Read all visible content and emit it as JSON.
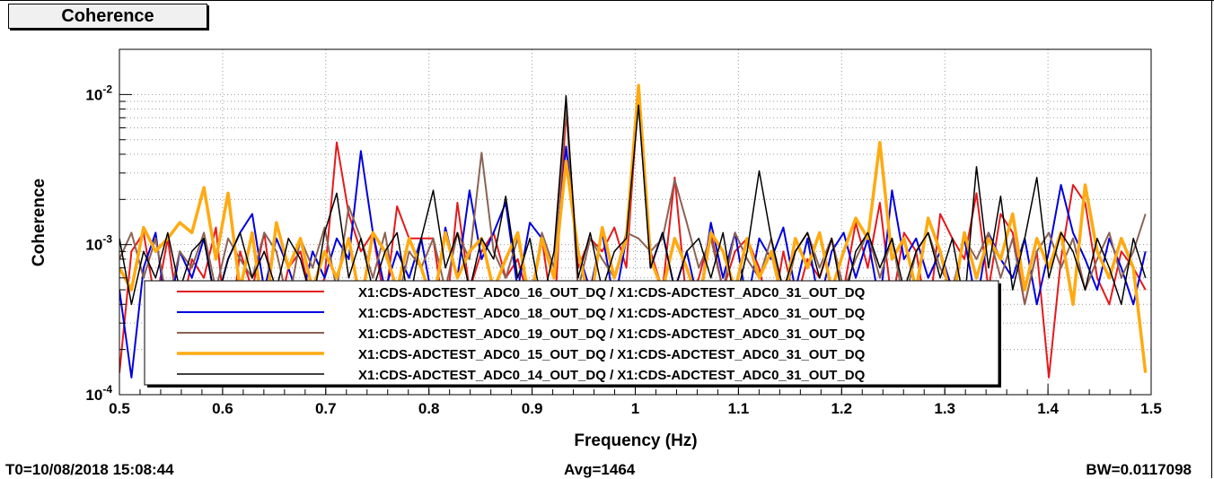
{
  "chart_data": {
    "type": "line",
    "title": "Coherence",
    "xlabel": "Frequency (Hz)",
    "ylabel": "Coherence",
    "xlim": [
      0.5,
      1.5
    ],
    "ylim": [
      0.0001,
      0.02
    ],
    "yscale": "log",
    "grid": true,
    "legend_placement": "bottom-center",
    "x_ticks": [
      {
        "value": 0.5,
        "label": "0.5"
      },
      {
        "value": 0.6,
        "label": "0.6"
      },
      {
        "value": 0.7,
        "label": "0.7"
      },
      {
        "value": 0.8,
        "label": "0.8"
      },
      {
        "value": 0.9,
        "label": "0.9"
      },
      {
        "value": 1.0,
        "label": "1"
      },
      {
        "value": 1.1,
        "label": "1.1"
      },
      {
        "value": 1.2,
        "label": "1.2"
      },
      {
        "value": 1.3,
        "label": "1.3"
      },
      {
        "value": 1.4,
        "label": "1.4"
      },
      {
        "value": 1.5,
        "label": "1.5"
      }
    ],
    "y_ticks": [
      {
        "value": 0.0001,
        "base": "10",
        "exp": "-4"
      },
      {
        "value": 0.001,
        "base": "10",
        "exp": "-3"
      },
      {
        "value": 0.01,
        "base": "10",
        "exp": "-2"
      }
    ],
    "x": [
      0.5,
      0.5117,
      0.5234,
      0.5351,
      0.5468,
      0.5585,
      0.5702,
      0.5819,
      0.5936,
      0.6053,
      0.617,
      0.6287,
      0.6404,
      0.6521,
      0.6638,
      0.6755,
      0.6872,
      0.6989,
      0.7106,
      0.7223,
      0.734,
      0.7457,
      0.7574,
      0.7691,
      0.7808,
      0.7925,
      0.8042,
      0.8159,
      0.8276,
      0.8393,
      0.851,
      0.8627,
      0.8744,
      0.8861,
      0.8978,
      0.9095,
      0.9212,
      0.9329,
      0.9446,
      0.9563,
      0.968,
      0.9797,
      0.9914,
      1.0031,
      1.0148,
      1.0265,
      1.0382,
      1.0499,
      1.0616,
      1.0733,
      1.085,
      1.0967,
      1.1084,
      1.1201,
      1.1318,
      1.1435,
      1.1552,
      1.1669,
      1.1786,
      1.1903,
      1.202,
      1.2137,
      1.2254,
      1.2371,
      1.2488,
      1.2605,
      1.2722,
      1.2839,
      1.2956,
      1.3073,
      1.319,
      1.3307,
      1.3424,
      1.3541,
      1.3658,
      1.3775,
      1.3892,
      1.4009,
      1.4126,
      1.4243,
      1.436,
      1.4477,
      1.4594,
      1.4711,
      1.4828,
      1.4945
    ],
    "series": [
      {
        "name": "X1:CDS-ADCTEST_ADC0_16_OUT_DQ / X1:CDS-ADCTEST_ADC0_31_OUT_DQ",
        "color": "#e41a1c",
        "width": 2,
        "values": [
          0.00014,
          0.0009,
          0.0012,
          0.0004,
          0.0011,
          0.0003,
          0.0008,
          0.0006,
          0.0013,
          0.0002,
          0.0009,
          0.0005,
          0.0012,
          0.0003,
          0.0007,
          0.0009,
          0.0004,
          0.0006,
          0.0048,
          0.0016,
          0.0009,
          0.0012,
          0.0004,
          0.0018,
          0.0011,
          0.0011,
          0.0011,
          0.0003,
          0.0019,
          0.0005,
          0.0009,
          0.0012,
          0.0006,
          0.0008,
          0.0004,
          0.0011,
          0.0003,
          0.0078,
          0.0007,
          0.0011,
          0.0009,
          0.0013,
          0.0007,
          0.0105,
          0.0009,
          0.0005,
          0.0028,
          0.0004,
          0.0006,
          0.0012,
          0.0005,
          0.0009,
          0.0011,
          0.0007,
          0.0003,
          0.0009,
          0.0004,
          0.0008,
          0.0006,
          0.0011,
          0.0005,
          0.0014,
          0.0007,
          0.0019,
          0.0004,
          0.0012,
          0.0009,
          0.0003,
          0.0016,
          0.0011,
          0.0008,
          0.0022,
          0.0005,
          0.0016,
          0.0012,
          0.0004,
          0.0009,
          0.00013,
          0.0008,
          0.0025,
          0.0019,
          0.0006,
          0.0004,
          0.0009,
          0.0007,
          0.0005
        ]
      },
      {
        "name": "X1:CDS-ADCTEST_ADC0_18_OUT_DQ / X1:CDS-ADCTEST_ADC0_31_OUT_DQ",
        "color": "#0000dd",
        "width": 2,
        "values": [
          0.0005,
          0.00013,
          0.0007,
          0.0012,
          0.0003,
          0.0009,
          0.0006,
          0.0011,
          0.0004,
          0.0008,
          0.0012,
          0.0016,
          0.0005,
          0.0011,
          0.0007,
          0.0004,
          0.0009,
          0.0006,
          0.0011,
          0.0008,
          0.0042,
          0.0012,
          0.0005,
          0.0009,
          0.0006,
          0.0011,
          0.0004,
          0.0013,
          0.0006,
          0.0023,
          0.0008,
          0.0012,
          0.0019,
          0.0005,
          0.0014,
          0.0011,
          0.0006,
          0.0045,
          0.0009,
          0.0005,
          0.0012,
          0.0004,
          0.0011,
          0.0098,
          0.0007,
          0.0012,
          0.0005,
          0.0009,
          0.0004,
          0.0014,
          0.0006,
          0.0012,
          0.0004,
          0.0011,
          0.0008,
          0.0013,
          0.0005,
          0.0011,
          0.0004,
          0.0009,
          0.0012,
          0.0006,
          0.0011,
          0.0004,
          0.0023,
          0.0008,
          0.0011,
          0.0006,
          0.0009,
          0.0005,
          0.0011,
          0.0004,
          0.0012,
          0.0008,
          0.0006,
          0.0011,
          0.0004,
          0.0009,
          0.0025,
          0.0012,
          0.0008,
          0.0005,
          0.0011,
          0.0007,
          0.0004,
          0.0009
        ]
      },
      {
        "name": "X1:CDS-ADCTEST_ADC0_19_OUT_DQ / X1:CDS-ADCTEST_ADC0_31_OUT_DQ",
        "color": "#8b6355",
        "width": 2,
        "values": [
          0.0008,
          0.0012,
          0.0006,
          0.0011,
          0.0004,
          0.0009,
          0.0007,
          0.0012,
          0.0005,
          0.0011,
          0.0008,
          0.0006,
          0.0012,
          0.0009,
          0.0004,
          0.0011,
          0.0007,
          0.0013,
          0.0005,
          0.0018,
          0.0011,
          0.0006,
          0.0012,
          0.0004,
          0.0009,
          0.0007,
          0.0011,
          0.0005,
          0.0012,
          0.0008,
          0.0041,
          0.0009,
          0.0006,
          0.0011,
          0.0004,
          0.0012,
          0.0007,
          0.0085,
          0.0005,
          0.0011,
          0.0008,
          0.0006,
          0.0012,
          0.0011,
          0.0009,
          0.0011,
          0.0027,
          0.0014,
          0.0007,
          0.0011,
          0.0005,
          0.0012,
          0.0008,
          0.0006,
          0.0011,
          0.0004,
          0.0009,
          0.0012,
          0.0007,
          0.0011,
          0.0005,
          0.0008,
          0.0012,
          0.0006,
          0.0011,
          0.0004,
          0.0009,
          0.0012,
          0.0007,
          0.0005,
          0.0011,
          0.0008,
          0.0012,
          0.0006,
          0.0011,
          0.0004,
          0.0009,
          0.0012,
          0.0007,
          0.0011,
          0.0005,
          0.0008,
          0.0012,
          0.0006,
          0.0009,
          0.0016
        ]
      },
      {
        "name": "X1:CDS-ADCTEST_ADC0_15_OUT_DQ / X1:CDS-ADCTEST_ADC0_31_OUT_DQ",
        "color": "#ffaa11",
        "width": 3.5,
        "values": [
          0.0007,
          0.0005,
          0.0013,
          0.0009,
          0.0011,
          0.0014,
          0.0012,
          0.0024,
          0.0008,
          0.0022,
          0.0005,
          0.0012,
          0.0003,
          0.0014,
          0.0007,
          0.0011,
          0.0005,
          0.0009,
          0.0006,
          0.0011,
          0.0004,
          0.0012,
          0.0009,
          0.0005,
          0.0011,
          0.0007,
          0.0004,
          0.0012,
          0.0006,
          0.0009,
          0.0011,
          0.0005,
          0.0008,
          0.0012,
          0.0004,
          0.0011,
          0.0006,
          0.0036,
          0.0009,
          0.0004,
          0.0013,
          0.0006,
          0.0011,
          0.0115,
          0.0008,
          0.0005,
          0.0011,
          0.0007,
          0.0004,
          0.0012,
          0.0009,
          0.0005,
          0.0011,
          0.0006,
          0.0009,
          0.0004,
          0.0011,
          0.0007,
          0.0012,
          0.0005,
          0.0009,
          0.0015,
          0.0011,
          0.0048,
          0.0008,
          0.0011,
          0.0005,
          0.0015,
          0.0009,
          0.0004,
          0.0012,
          0.0006,
          0.0011,
          0.0008,
          0.0016,
          0.0005,
          0.0011,
          0.0007,
          0.0012,
          0.0004,
          0.0025,
          0.0009,
          0.0006,
          0.0011,
          0.0007,
          0.00014
        ]
      },
      {
        "name": "X1:CDS-ADCTEST_ADC0_14_OUT_DQ / X1:CDS-ADCTEST_ADC0_31_OUT_DQ",
        "color": "#000000",
        "width": 1.5,
        "values": [
          0.0011,
          0.0004,
          0.0009,
          0.0006,
          0.0012,
          0.0005,
          0.0009,
          0.0011,
          0.0004,
          0.0008,
          0.0012,
          0.0006,
          0.0009,
          0.0005,
          0.0011,
          0.0008,
          0.0004,
          0.0012,
          0.0022,
          0.0006,
          0.0011,
          0.0005,
          0.0009,
          0.0012,
          0.0004,
          0.0011,
          0.0023,
          0.0007,
          0.0012,
          0.0005,
          0.0011,
          0.0008,
          0.0021,
          0.0006,
          0.0011,
          0.0004,
          0.0009,
          0.0098,
          0.0006,
          0.0012,
          0.0005,
          0.0009,
          0.0011,
          0.0085,
          0.0007,
          0.0012,
          0.0005,
          0.0009,
          0.0011,
          0.0006,
          0.0012,
          0.0004,
          0.0009,
          0.0031,
          0.0011,
          0.0005,
          0.0009,
          0.0012,
          0.0006,
          0.0011,
          0.0004,
          0.0009,
          0.0012,
          0.0007,
          0.0011,
          0.0005,
          0.0009,
          0.0012,
          0.0006,
          0.0011,
          0.0004,
          0.0033,
          0.0007,
          0.0021,
          0.0005,
          0.0011,
          0.0028,
          0.0006,
          0.0012,
          0.0009,
          0.0005,
          0.0011,
          0.0007,
          0.0004,
          0.0011,
          0.0006
        ]
      }
    ]
  },
  "footer": {
    "t0": "T0=10/08/2018 15:08:44",
    "avg": "Avg=1464",
    "bw": "BW=0.0117098"
  }
}
